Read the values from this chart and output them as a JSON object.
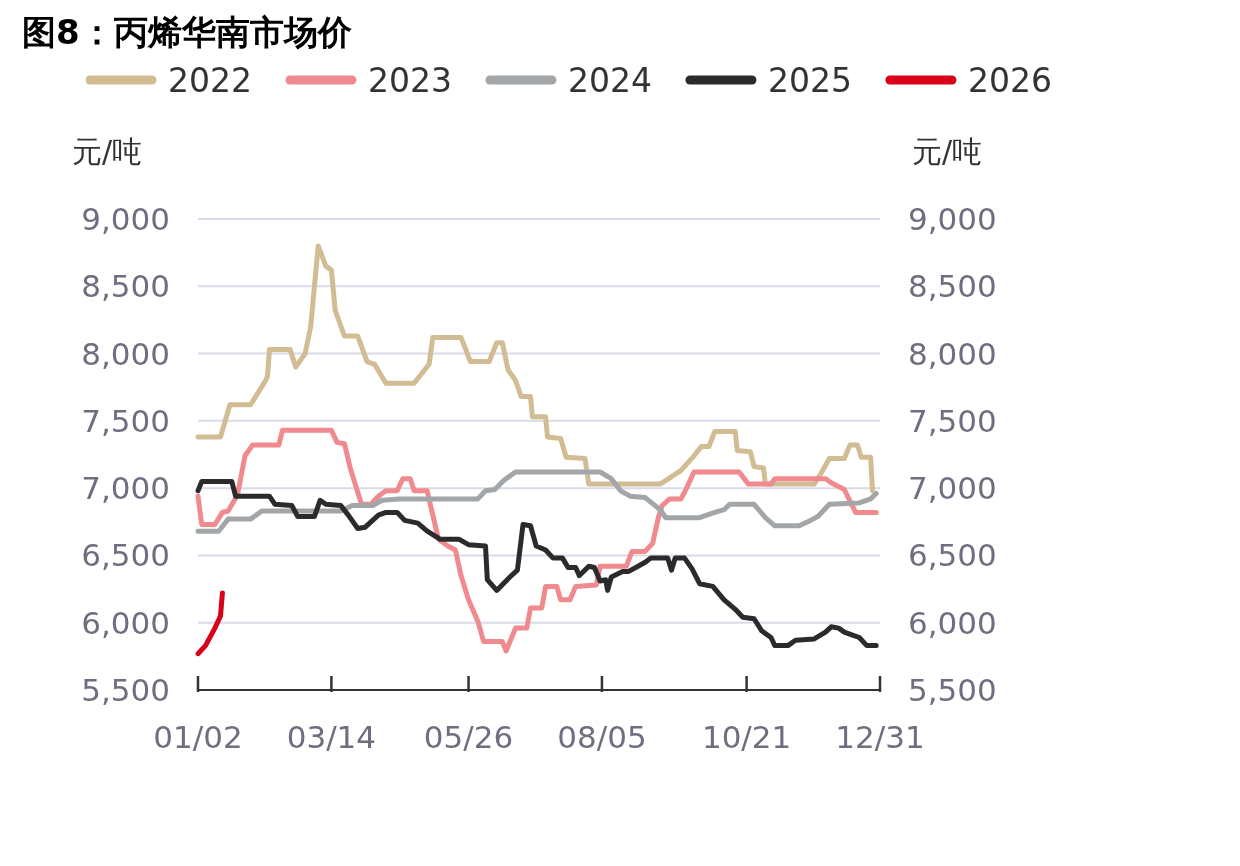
{
  "chart_data": {
    "type": "line",
    "title": "图8：丙烯华南市场价",
    "ylabel": "元/吨",
    "y2label": "元/吨",
    "legend": "top",
    "grid": "y",
    "marker": "none",
    "line_style": "solid",
    "xlim": [
      "--01-02",
      "--12-31"
    ],
    "xticks": [
      {
        "value": "--01-02",
        "label": "01/02"
      },
      {
        "value": "--03-14",
        "label": "03/14"
      },
      {
        "value": "--05-26",
        "label": "05/26"
      },
      {
        "value": "--08-05",
        "label": "08/05"
      },
      {
        "value": "--10-21",
        "label": "10/21"
      },
      {
        "value": "--12-31",
        "label": "12/31"
      }
    ],
    "ylim": [
      5500,
      9000
    ],
    "yticks": [
      {
        "value": 5500,
        "label": "5,500"
      },
      {
        "value": 6000,
        "label": "6,000"
      },
      {
        "value": 6500,
        "label": "6,500"
      },
      {
        "value": 7000,
        "label": "7,000"
      },
      {
        "value": 7500,
        "label": "7,500"
      },
      {
        "value": 8000,
        "label": "8,000"
      },
      {
        "value": 8500,
        "label": "8,500"
      },
      {
        "value": 9000,
        "label": "9,000"
      }
    ],
    "y2lim": [
      5500,
      9000
    ],
    "y2ticks": [
      {
        "value": 5500,
        "label": "5,500"
      },
      {
        "value": 6000,
        "label": "6,000"
      },
      {
        "value": 6500,
        "label": "6,500"
      },
      {
        "value": 7000,
        "label": "7,000"
      },
      {
        "value": 7500,
        "label": "7,500"
      },
      {
        "value": 8000,
        "label": "8,000"
      },
      {
        "value": 8500,
        "label": "8,500"
      },
      {
        "value": 9000,
        "label": "9,000"
      }
    ],
    "series": [
      {
        "name": "2022",
        "color": "#d1bc93",
        "x": [
          "--01-02",
          "--01-14",
          "--01-19",
          "--01-27",
          "--01-30",
          "--02-07",
          "--02-08",
          "--02-09",
          "--02-20",
          "--02-23",
          "--02-28",
          "--03-03",
          "--03-07",
          "--03-11",
          "--03-14",
          "--03-16",
          "--03-21",
          "--03-28",
          "--04-02",
          "--04-06",
          "--04-12",
          "--04-27",
          "--05-05",
          "--05-07",
          "--05-22",
          "--05-27",
          "--06-06",
          "--06-10",
          "--06-13",
          "--06-16",
          "--06-20",
          "--06-23",
          "--06-28",
          "--06-29",
          "--07-06",
          "--07-07",
          "--07-14",
          "--07-17",
          "--07-27",
          "--07-29",
          "--09-05",
          "--09-16",
          "--09-23",
          "--09-27",
          "--10-01",
          "--10-04",
          "--10-15",
          "--10-16",
          "--10-23",
          "--10-25",
          "--10-30",
          "--10-31",
          "--11-26",
          "--11-30",
          "--12-04",
          "--12-12",
          "--12-15",
          "--12-19",
          "--12-21",
          "--12-26",
          "--12-27"
        ],
        "values": [
          7380,
          7380,
          7620,
          7620,
          7620,
          7800,
          7830,
          8030,
          8030,
          7900,
          8000,
          8200,
          8800,
          8650,
          8620,
          8320,
          8130,
          8130,
          7940,
          7920,
          7780,
          7780,
          7920,
          8120,
          8120,
          7940,
          7940,
          8080,
          8080,
          7880,
          7800,
          7680,
          7680,
          7530,
          7530,
          7380,
          7370,
          7230,
          7220,
          7030,
          7030,
          7130,
          7240,
          7310,
          7310,
          7420,
          7420,
          7280,
          7270,
          7160,
          7150,
          7030,
          7030,
          7120,
          7220,
          7220,
          7320,
          7320,
          7230,
          7230,
          6980
        ]
      },
      {
        "name": "2023",
        "color": "#f08a8e",
        "x": [
          "--01-02",
          "--01-04",
          "--01-11",
          "--01-15",
          "--01-18",
          "--01-23",
          "--01-27",
          "--01-31",
          "--02-14",
          "--02-16",
          "--03-14",
          "--03-17",
          "--03-21",
          "--03-24",
          "--03-30",
          "--04-04",
          "--04-08",
          "--04-12",
          "--04-18",
          "--04-21",
          "--04-25",
          "--04-27",
          "--05-04",
          "--05-07",
          "--05-10",
          "--05-15",
          "--05-19",
          "--05-22",
          "--05-26",
          "--05-31",
          "--06-03",
          "--06-13",
          "--06-15",
          "--06-20",
          "--06-26",
          "--06-28",
          "--07-04",
          "--07-06",
          "--07-12",
          "--07-14",
          "--07-19",
          "--07-22",
          "--08-02",
          "--08-04",
          "--08-18",
          "--08-21",
          "--08-28",
          "--09-01",
          "--09-04",
          "--09-06",
          "--09-10",
          "--09-16",
          "--09-18",
          "--09-23",
          "--10-17",
          "--10-22",
          "--11-03",
          "--11-05",
          "--12-02",
          "--12-05",
          "--12-12",
          "--12-18",
          "--12-29"
        ],
        "values": [
          6940,
          6730,
          6730,
          6820,
          6830,
          6950,
          7240,
          7320,
          7320,
          7430,
          7430,
          7340,
          7330,
          7150,
          6880,
          6880,
          6940,
          6980,
          6980,
          7070,
          7070,
          6980,
          6980,
          6800,
          6620,
          6570,
          6540,
          6350,
          6170,
          6010,
          5860,
          5860,
          5790,
          5960,
          5960,
          6110,
          6110,
          6270,
          6270,
          6170,
          6170,
          6270,
          6280,
          6420,
          6420,
          6530,
          6530,
          6590,
          6780,
          6870,
          6920,
          6920,
          6970,
          7120,
          7120,
          7030,
          7030,
          7070,
          7070,
          7040,
          6990,
          6820,
          6820
        ]
      },
      {
        "name": "2024",
        "color": "#a3a6a9",
        "x": [
          "--01-02",
          "--01-13",
          "--01-18",
          "--01-30",
          "--02-05",
          "--03-19",
          "--03-25",
          "--04-05",
          "--04-10",
          "--04-19",
          "--05-31",
          "--06-04",
          "--06-09",
          "--06-14",
          "--06-20",
          "--08-04",
          "--08-10",
          "--08-15",
          "--08-20",
          "--08-28",
          "--09-05",
          "--09-08",
          "--09-26",
          "--10-04",
          "--10-09",
          "--10-12",
          "--10-25",
          "--10-31",
          "--11-05",
          "--11-18",
          "--11-24",
          "--11-28",
          "--12-04",
          "--12-20",
          "--12-26",
          "--12-29"
        ],
        "values": [
          6680,
          6680,
          6770,
          6770,
          6830,
          6830,
          6870,
          6870,
          6910,
          6920,
          6920,
          6980,
          6990,
          7060,
          7120,
          7120,
          7070,
          6980,
          6940,
          6930,
          6840,
          6780,
          6780,
          6820,
          6840,
          6880,
          6880,
          6780,
          6720,
          6720,
          6760,
          6790,
          6880,
          6890,
          6920,
          6960
        ]
      },
      {
        "name": "2025",
        "color": "#2b2b2b",
        "x": [
          "--01-02",
          "--01-04",
          "--01-20",
          "--01-22",
          "--02-09",
          "--02-12",
          "--02-21",
          "--02-24",
          "--03-05",
          "--03-08",
          "--03-11",
          "--03-19",
          "--03-23",
          "--03-28",
          "--04-01",
          "--04-08",
          "--04-12",
          "--04-18",
          "--04-22",
          "--04-29",
          "--05-04",
          "--05-11",
          "--05-21",
          "--05-26",
          "--06-04",
          "--06-05",
          "--06-10",
          "--06-17",
          "--06-21",
          "--06-24",
          "--06-28",
          "--07-01",
          "--07-06",
          "--07-10",
          "--07-15",
          "--07-18",
          "--07-22",
          "--07-24",
          "--07-29",
          "--08-01",
          "--08-04",
          "--08-07",
          "--08-08",
          "--08-10",
          "--08-16",
          "--08-19",
          "--08-23",
          "--08-28",
          "--08-31",
          "--09-09",
          "--09-11",
          "--09-13",
          "--09-18",
          "--09-22",
          "--09-26",
          "--10-03",
          "--10-09",
          "--10-15",
          "--10-19",
          "--10-25",
          "--10-29",
          "--11-03",
          "--11-05",
          "--11-12",
          "--11-16",
          "--11-26",
          "--12-02",
          "--12-05",
          "--12-09",
          "--12-12",
          "--12-16",
          "--12-20",
          "--12-24",
          "--12-29"
        ],
        "values": [
          6980,
          7050,
          7050,
          6940,
          6940,
          6880,
          6870,
          6790,
          6790,
          6910,
          6880,
          6870,
          6800,
          6700,
          6710,
          6800,
          6820,
          6820,
          6760,
          6740,
          6680,
          6620,
          6620,
          6580,
          6570,
          6320,
          6240,
          6340,
          6390,
          6730,
          6720,
          6570,
          6540,
          6480,
          6480,
          6410,
          6410,
          6350,
          6420,
          6410,
          6310,
          6320,
          6240,
          6340,
          6380,
          6380,
          6410,
          6450,
          6480,
          6480,
          6390,
          6480,
          6480,
          6400,
          6290,
          6270,
          6170,
          6100,
          6040,
          6030,
          5940,
          5890,
          5830,
          5830,
          5870,
          5880,
          5930,
          5970,
          5960,
          5930,
          5910,
          5890,
          5830,
          5830
        ]
      },
      {
        "name": "2026",
        "color": "#d9001b",
        "x": [
          "--01-02",
          "--01-06",
          "--01-11",
          "--01-14",
          "--01-15"
        ],
        "values": [
          5770,
          5830,
          5960,
          6050,
          6220
        ]
      }
    ]
  }
}
